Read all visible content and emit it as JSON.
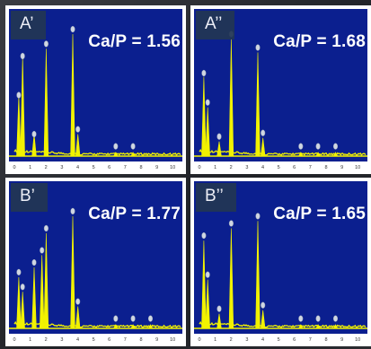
{
  "chart_data": [
    {
      "type": "line",
      "panel_label": "A’",
      "annotation": "Ca/P = 1.56",
      "x_ticks": [
        "0",
        "1",
        "2",
        "3",
        "4",
        "5",
        "6",
        "7",
        "8",
        "9",
        "10"
      ],
      "xlim": [
        0,
        10.5
      ],
      "ylim": [
        0,
        100
      ],
      "peaks": [
        {
          "x": 0.28,
          "y": 50
        },
        {
          "x": 0.52,
          "y": 82
        },
        {
          "x": 1.25,
          "y": 18
        },
        {
          "x": 2.01,
          "y": 88
        },
        {
          "x": 3.69,
          "y": 100
        },
        {
          "x": 4.01,
          "y": 18
        },
        {
          "x": 6.4,
          "y": 3
        },
        {
          "x": 7.5,
          "y": 3
        }
      ],
      "markers": [
        {
          "x": 0.28,
          "y": 50
        },
        {
          "x": 0.52,
          "y": 82
        },
        {
          "x": 1.25,
          "y": 18
        },
        {
          "x": 2.01,
          "y": 92
        },
        {
          "x": 3.69,
          "y": 104
        },
        {
          "x": 4.01,
          "y": 22
        },
        {
          "x": 6.4,
          "y": 8
        },
        {
          "x": 7.5,
          "y": 8
        }
      ]
    },
    {
      "type": "line",
      "panel_label": "A’’",
      "annotation": "Ca/P = 1.68",
      "x_ticks": [
        "0",
        "1",
        "2",
        "3",
        "4",
        "5",
        "6",
        "7",
        "8",
        "9",
        "10"
      ],
      "xlim": [
        0,
        10.5
      ],
      "ylim": [
        0,
        100
      ],
      "peaks": [
        {
          "x": 0.28,
          "y": 65
        },
        {
          "x": 0.52,
          "y": 40
        },
        {
          "x": 1.25,
          "y": 12
        },
        {
          "x": 2.01,
          "y": 96
        },
        {
          "x": 3.69,
          "y": 85
        },
        {
          "x": 4.01,
          "y": 15
        },
        {
          "x": 6.4,
          "y": 3
        },
        {
          "x": 7.5,
          "y": 3
        },
        {
          "x": 8.6,
          "y": 3
        }
      ],
      "markers": [
        {
          "x": 0.28,
          "y": 68
        },
        {
          "x": 0.52,
          "y": 44
        },
        {
          "x": 1.25,
          "y": 16
        },
        {
          "x": 2.01,
          "y": 100
        },
        {
          "x": 3.69,
          "y": 89
        },
        {
          "x": 4.01,
          "y": 19
        },
        {
          "x": 6.4,
          "y": 8
        },
        {
          "x": 7.5,
          "y": 8
        },
        {
          "x": 8.6,
          "y": 8
        }
      ]
    },
    {
      "type": "line",
      "panel_label": "B’",
      "annotation": "Ca/P = 1.77",
      "x_ticks": [
        "0",
        "1",
        "2",
        "3",
        "4",
        "5",
        "6",
        "7",
        "8",
        "9",
        "10"
      ],
      "xlim": [
        0,
        10.5
      ],
      "ylim": [
        0,
        100
      ],
      "peaks": [
        {
          "x": 0.28,
          "y": 42
        },
        {
          "x": 0.52,
          "y": 30
        },
        {
          "x": 1.25,
          "y": 50
        },
        {
          "x": 1.74,
          "y": 60
        },
        {
          "x": 2.01,
          "y": 78
        },
        {
          "x": 3.69,
          "y": 92
        },
        {
          "x": 4.01,
          "y": 18
        },
        {
          "x": 6.4,
          "y": 3
        },
        {
          "x": 7.5,
          "y": 3
        },
        {
          "x": 8.6,
          "y": 3
        }
      ],
      "markers": [
        {
          "x": 0.28,
          "y": 46
        },
        {
          "x": 0.52,
          "y": 34
        },
        {
          "x": 1.25,
          "y": 54
        },
        {
          "x": 1.74,
          "y": 64
        },
        {
          "x": 2.01,
          "y": 82
        },
        {
          "x": 3.69,
          "y": 96
        },
        {
          "x": 4.01,
          "y": 22
        },
        {
          "x": 6.4,
          "y": 8
        },
        {
          "x": 7.5,
          "y": 8
        },
        {
          "x": 8.6,
          "y": 8
        }
      ]
    },
    {
      "type": "line",
      "panel_label": "B’’",
      "annotation": "Ca/P = 1.65",
      "x_ticks": [
        "0",
        "1",
        "2",
        "3",
        "4",
        "5",
        "6",
        "7",
        "8",
        "9",
        "10"
      ],
      "xlim": [
        0,
        10.5
      ],
      "ylim": [
        0,
        100
      ],
      "peaks": [
        {
          "x": 0.28,
          "y": 72
        },
        {
          "x": 0.52,
          "y": 40
        },
        {
          "x": 1.25,
          "y": 12
        },
        {
          "x": 2.01,
          "y": 82
        },
        {
          "x": 3.69,
          "y": 88
        },
        {
          "x": 4.01,
          "y": 15
        },
        {
          "x": 6.4,
          "y": 3
        },
        {
          "x": 7.5,
          "y": 3
        },
        {
          "x": 8.6,
          "y": 3
        }
      ],
      "markers": [
        {
          "x": 0.28,
          "y": 76
        },
        {
          "x": 0.52,
          "y": 44
        },
        {
          "x": 1.25,
          "y": 16
        },
        {
          "x": 2.01,
          "y": 86
        },
        {
          "x": 3.69,
          "y": 92
        },
        {
          "x": 4.01,
          "y": 19
        },
        {
          "x": 6.4,
          "y": 8
        },
        {
          "x": 7.5,
          "y": 8
        },
        {
          "x": 8.6,
          "y": 8
        }
      ]
    }
  ],
  "colors": {
    "plot_background": "#0b1f8f",
    "spectrum": "#f2f200",
    "marker": "#cfd6e2",
    "label_box": "#223654",
    "text": "#ffffff"
  }
}
